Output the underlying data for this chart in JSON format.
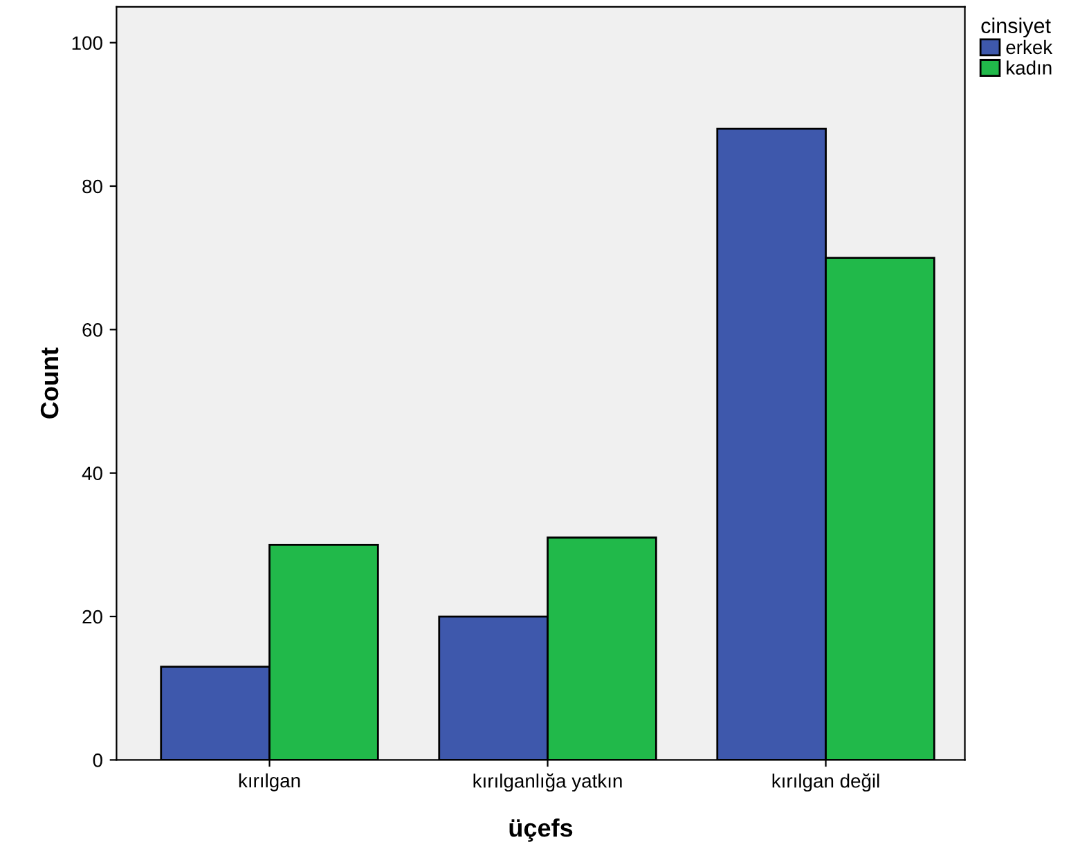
{
  "chart_data": {
    "type": "bar",
    "xlabel": "üçefs",
    "ylabel": "Count",
    "legend_title": "cinsiyet",
    "categories": [
      "kırılgan",
      "kırılganlığa yatkın",
      "kırılgan değil"
    ],
    "series": [
      {
        "name": "erkek",
        "color": "#3e58ac",
        "values": [
          13,
          20,
          88
        ]
      },
      {
        "name": "kadın",
        "color": "#21b94a",
        "values": [
          30,
          31,
          70
        ]
      }
    ],
    "ylim": [
      0,
      105
    ],
    "yticks": [
      0,
      20,
      40,
      60,
      80,
      100
    ],
    "grid": false,
    "legend": "top right"
  }
}
